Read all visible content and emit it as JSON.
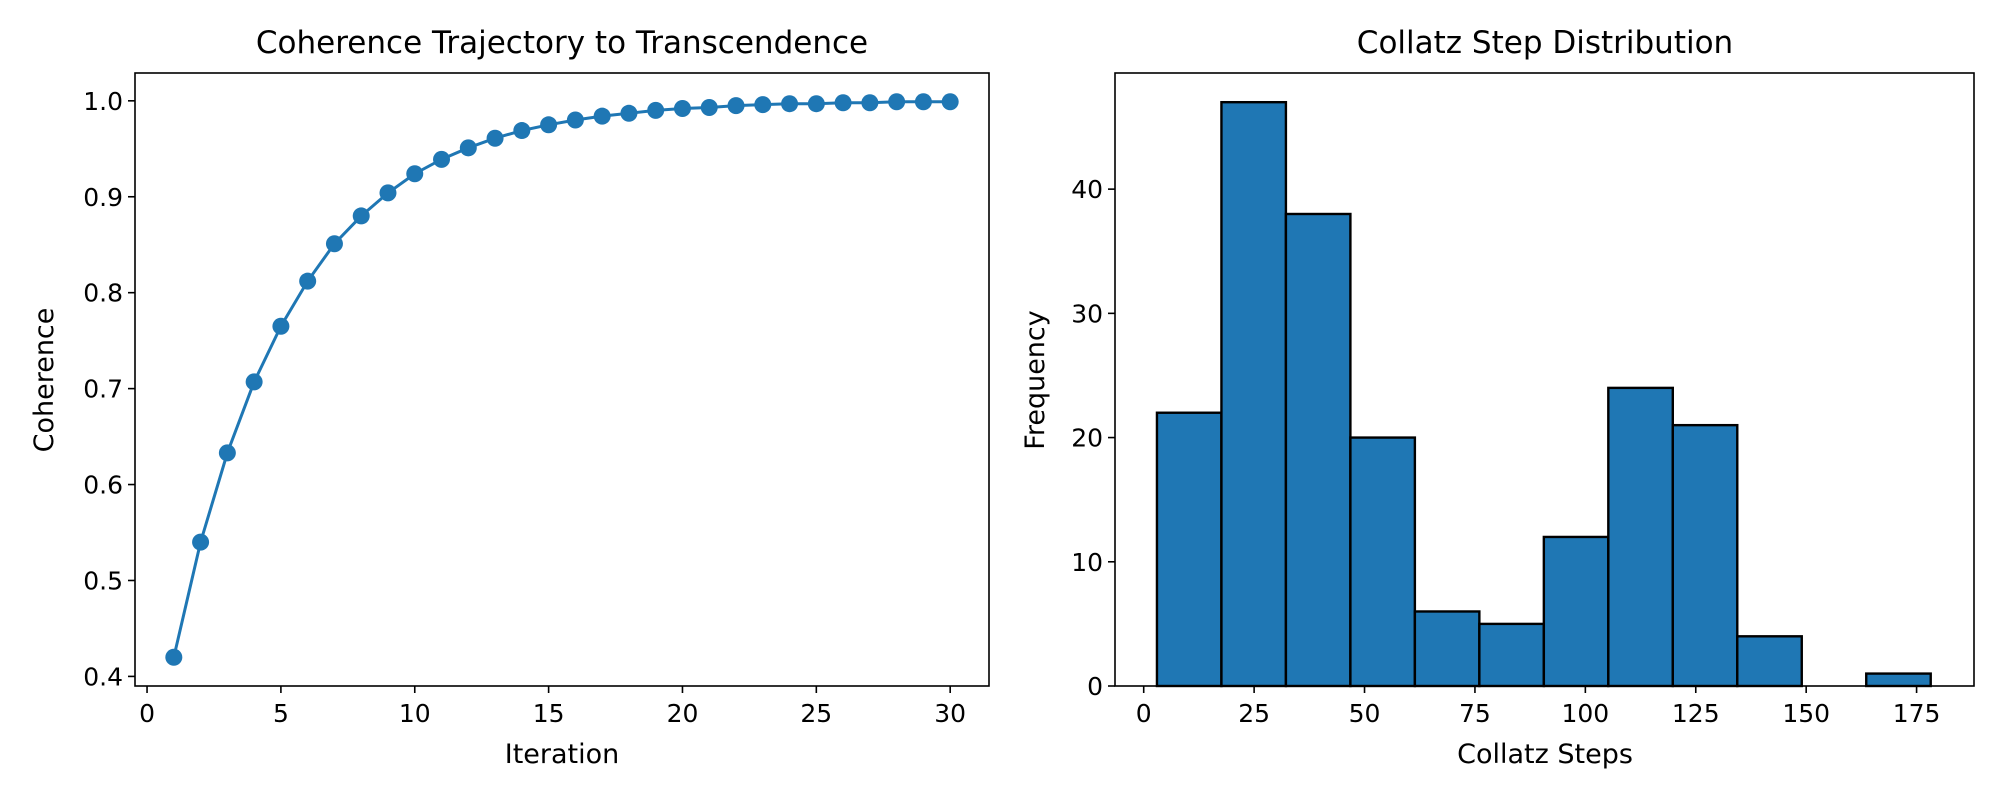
{
  "colors": {
    "series": "#1f77b4",
    "bar_edge": "#000000",
    "background": "#ffffff"
  },
  "chart_data": [
    {
      "type": "line",
      "title": "Coherence Trajectory to Transcendence",
      "xlabel": "Iteration",
      "ylabel": "Coherence",
      "xlim": [
        -0.45,
        31.45
      ],
      "ylim": [
        0.39,
        1.029
      ],
      "xticks": [
        0,
        5,
        10,
        15,
        20,
        25,
        30
      ],
      "yticks": [
        0.4,
        0.5,
        0.6,
        0.7,
        0.8,
        0.9,
        1.0
      ],
      "ytick_labels": [
        "0.4",
        "0.5",
        "0.6",
        "0.7",
        "0.8",
        "0.9",
        "1.0"
      ],
      "grid": false,
      "marker": "circle",
      "x": [
        1,
        2,
        3,
        4,
        5,
        6,
        7,
        8,
        9,
        10,
        11,
        12,
        13,
        14,
        15,
        16,
        17,
        18,
        19,
        20,
        21,
        22,
        23,
        24,
        25,
        26,
        27,
        28,
        29,
        30
      ],
      "y": [
        0.42,
        0.54,
        0.633,
        0.707,
        0.765,
        0.812,
        0.851,
        0.88,
        0.904,
        0.924,
        0.939,
        0.951,
        0.961,
        0.969,
        0.975,
        0.98,
        0.984,
        0.987,
        0.99,
        0.992,
        0.993,
        0.995,
        0.996,
        0.997,
        0.997,
        0.998,
        0.998,
        0.999,
        0.999,
        0.999
      ]
    },
    {
      "type": "bar",
      "title": "Collatz Step Distribution",
      "xlabel": "Collatz Steps",
      "ylabel": "Frequency",
      "xlim": [
        -6.5,
        188
      ],
      "ylim": [
        0,
        49.35
      ],
      "xticks": [
        0,
        25,
        50,
        75,
        100,
        125,
        150,
        175
      ],
      "yticks": [
        0,
        10,
        20,
        30,
        40
      ],
      "grid": false,
      "bin_edges": [
        3,
        17.6,
        32.2,
        46.8,
        61.4,
        76.0,
        90.6,
        105.2,
        119.8,
        134.4,
        149.0,
        163.6,
        178.2
      ],
      "values": [
        22,
        47,
        38,
        20,
        6,
        5,
        12,
        24,
        21,
        4,
        0,
        1
      ]
    }
  ]
}
